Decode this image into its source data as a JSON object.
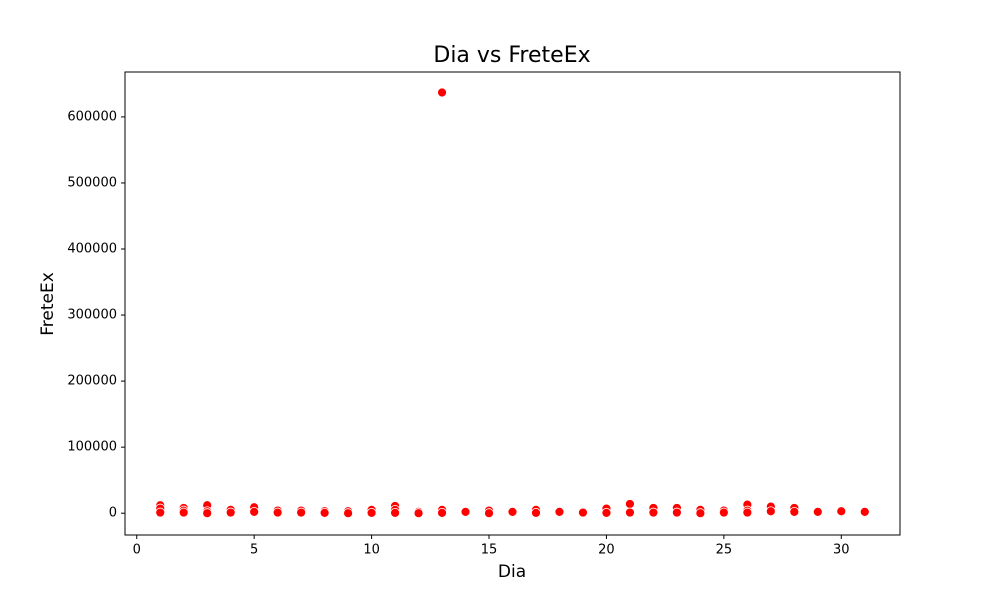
{
  "chart_data": {
    "type": "scatter",
    "title": "Dia vs FreteEx",
    "x_label": "Dia",
    "y_label": "FreteEx",
    "series": [
      {
        "name": "FreteEx",
        "color": "#ff0000",
        "x": [
          1,
          1,
          1,
          2,
          2,
          2,
          3,
          3,
          3,
          4,
          4,
          5,
          5,
          6,
          6,
          7,
          7,
          8,
          8,
          9,
          9,
          10,
          10,
          11,
          11,
          11,
          12,
          12,
          13,
          13,
          13,
          14,
          15,
          15,
          16,
          17,
          17,
          18,
          19,
          20,
          20,
          21,
          21,
          22,
          22,
          23,
          23,
          24,
          24,
          25,
          25,
          26,
          26,
          26,
          27,
          27,
          28,
          28,
          29,
          30,
          31
        ],
        "values": [
          12000,
          7000,
          1000,
          8000,
          4000,
          1000,
          12000,
          3000,
          0,
          5000,
          1000,
          9000,
          2000,
          4000,
          1000,
          4000,
          1000,
          3000,
          500,
          3000,
          0,
          5000,
          500,
          11000,
          5000,
          500,
          2000,
          0,
          637000,
          5000,
          500,
          2000,
          4000,
          0,
          2000,
          5000,
          500,
          2000,
          1000,
          7000,
          500,
          14000,
          1000,
          8000,
          1000,
          8000,
          1000,
          5000,
          0,
          4000,
          1000,
          13000,
          4000,
          1000,
          10000,
          3000,
          8000,
          2000,
          2000,
          3000,
          2000
        ]
      }
    ],
    "xlim": [
      -0.5,
      32.5
    ],
    "ylim": [
      -33000,
      668000
    ],
    "xticks": [
      0,
      5,
      10,
      15,
      20,
      25,
      30
    ],
    "yticks": [
      0,
      100000,
      200000,
      300000,
      400000,
      500000,
      600000
    ],
    "grid": false
  }
}
